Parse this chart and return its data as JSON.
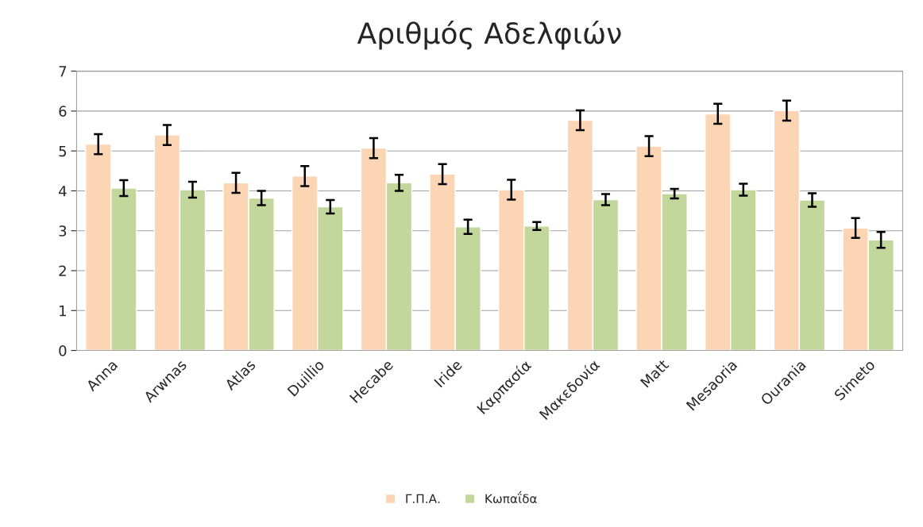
{
  "chart_data": {
    "type": "bar",
    "title": "Αριθμός Αδελφιών",
    "categories": [
      "Anna",
      "Arwnas",
      "Atlas",
      "Duillio",
      "Hecabe",
      "Iride",
      "Καρπασία",
      "Μακεδονία",
      "Matt",
      "Mesaoria",
      "Ourania",
      "Simeto"
    ],
    "series": [
      {
        "name": "Γ.Π.Α.",
        "color": "#fcd5b5",
        "values": [
          5.17,
          5.4,
          4.2,
          4.37,
          5.07,
          4.42,
          4.03,
          5.77,
          5.12,
          5.93,
          6.01,
          3.07
        ],
        "errors": [
          0.25,
          0.25,
          0.25,
          0.25,
          0.25,
          0.25,
          0.25,
          0.25,
          0.25,
          0.25,
          0.25,
          0.25
        ]
      },
      {
        "name": "Κωπαΐδα",
        "color": "#c3d69b",
        "values": [
          4.07,
          4.03,
          3.82,
          3.6,
          4.2,
          3.1,
          3.12,
          3.78,
          3.93,
          4.03,
          3.77,
          2.77
        ],
        "errors": [
          0.2,
          0.2,
          0.18,
          0.17,
          0.2,
          0.18,
          0.1,
          0.14,
          0.12,
          0.15,
          0.17,
          0.2
        ]
      }
    ],
    "ylim": [
      0,
      7
    ],
    "yticks": [
      0,
      1,
      2,
      3,
      4,
      5,
      6,
      7
    ],
    "grid": "y",
    "legend": "bottom"
  }
}
